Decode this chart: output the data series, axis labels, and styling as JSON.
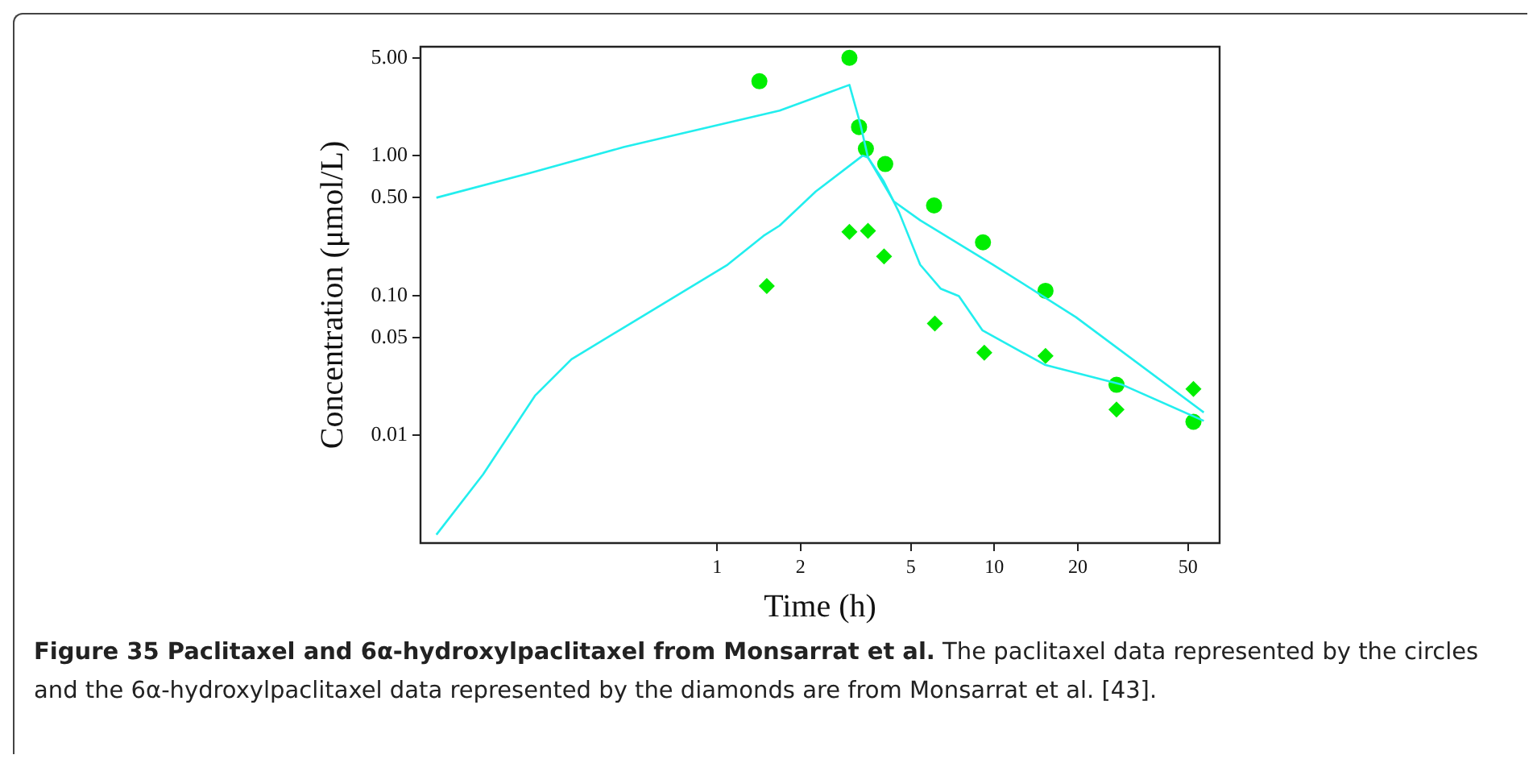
{
  "chart_data": {
    "type": "scatter",
    "title": "Figure 35 Paclitaxel and 6α-hydroxylpaclitaxel from Monsarrat et al.",
    "annotations": [
      "The paclitaxel data represented by the circles and the 6α-hydroxylpaclitaxel data represented by the diamonds are from Monsarrat et al. [43]."
    ],
    "xlabel": "Time (h)",
    "ylabel": "Concentration (μmol/L)",
    "log": "xy",
    "grid": false,
    "legend": false,
    "xlim": [
      0.085,
      65
    ],
    "ylim": [
      0.0017,
      6
    ],
    "xticks": [
      1,
      2,
      5,
      10,
      20,
      50
    ],
    "yticks": [
      {
        "value": 5,
        "label": "5.00"
      },
      {
        "value": 1,
        "label": "1.00"
      },
      {
        "value": 0.5,
        "label": "0.50"
      },
      {
        "value": 0.1,
        "label": "0.10"
      },
      {
        "value": 0.05,
        "label": "0.05"
      },
      {
        "value": 0.01,
        "label": "0.01"
      }
    ],
    "series": [
      {
        "type": "line",
        "color": "#22eeee",
        "marker": "none",
        "x": [
          0.097,
          0.211,
          0.46,
          1.68,
          3.0,
          3.28,
          3.5,
          4.34,
          5.4,
          9.9,
          19.7,
          57
        ],
        "values": [
          0.5,
          0.75,
          1.15,
          2.1,
          3.2,
          1.7,
          0.97,
          0.47,
          0.345,
          0.166,
          0.07,
          0.0146
        ]
      },
      {
        "type": "line",
        "color": "#22eeee",
        "marker": "none",
        "x": [
          0.097,
          0.143,
          0.22,
          0.298,
          0.46,
          1.09,
          1.47,
          1.68,
          2.27,
          3.35,
          3.5,
          3.98,
          4.54,
          5.4,
          6.4,
          7.45,
          9.05,
          15.2,
          29,
          57
        ],
        "values": [
          0.00195,
          0.00526,
          0.0192,
          0.035,
          0.059,
          0.166,
          0.267,
          0.316,
          0.555,
          1.0,
          0.97,
          0.66,
          0.39,
          0.166,
          0.112,
          0.099,
          0.0565,
          0.032,
          0.023,
          0.0127
        ]
      },
      {
        "type": "scatter",
        "color": "#00ee00",
        "marker": "circle",
        "x": [
          1.42,
          3.0,
          3.25,
          3.44,
          4.04,
          6.06,
          9.1,
          15.3,
          27.6,
          52.3
        ],
        "values": [
          3.4,
          5.0,
          1.6,
          1.12,
          0.87,
          0.44,
          0.24,
          0.108,
          0.023,
          0.0125
        ]
      },
      {
        "type": "scatter",
        "color": "#00ee00",
        "marker": "diamond",
        "x": [
          1.51,
          3.0,
          3.5,
          4.0,
          6.1,
          9.2,
          15.3,
          27.6,
          52.3
        ],
        "values": [
          0.117,
          0.285,
          0.29,
          0.19,
          0.063,
          0.039,
          0.037,
          0.0153,
          0.0215
        ]
      }
    ]
  }
}
